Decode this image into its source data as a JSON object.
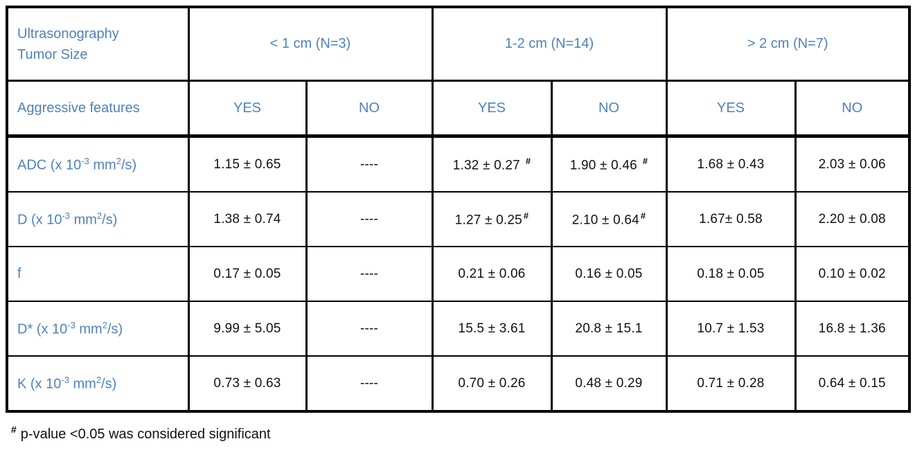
{
  "colors": {
    "accent": "#4F81BD",
    "text": "#111111",
    "border": "#000000",
    "background": "#FFFFFF"
  },
  "table": {
    "corner": {
      "line1": "Ultrasonography",
      "line2": "Tumor Size"
    },
    "size_groups": [
      "< 1 cm (N=3)",
      "1-2 cm (N=14)",
      "> 2 cm (N=7)"
    ],
    "aggressive_label": "Aggressive features",
    "yes_no_headers": [
      "YES",
      "NO",
      "YES",
      "NO",
      "YES",
      "NO"
    ],
    "rows": [
      {
        "parameter": "ADC (x 10-3 mm2/s)",
        "label_parts": [
          {
            "t": "ADC (x 10"
          },
          {
            "sup": "-3"
          },
          {
            "t": " mm"
          },
          {
            "sup": "2"
          },
          {
            "t": "/s)"
          }
        ],
        "values": [
          {
            "text": "1.15 ± 0.65"
          },
          {
            "text": "----"
          },
          {
            "text": "1.32 ± 0.27",
            "sig": true,
            "gap": true
          },
          {
            "text": "1.90 ± 0.46",
            "sig": true,
            "gap": true
          },
          {
            "text": "1.68 ± 0.43"
          },
          {
            "text": "2.03 ± 0.06"
          }
        ]
      },
      {
        "parameter": "D (x 10-3 mm2/s)",
        "label_parts": [
          {
            "t": "D (x 10"
          },
          {
            "sup": "-3"
          },
          {
            "t": " mm"
          },
          {
            "sup": "2"
          },
          {
            "t": "/s)"
          }
        ],
        "values": [
          {
            "text": "1.38 ± 0.74"
          },
          {
            "text": "----"
          },
          {
            "text": "1.27 ± 0.25",
            "sig": true
          },
          {
            "text": "2.10 ± 0.64",
            "sig": true
          },
          {
            "text": "1.67± 0.58"
          },
          {
            "text": "2.20 ± 0.08"
          }
        ]
      },
      {
        "parameter": "f",
        "label_parts": [
          {
            "t": "f"
          }
        ],
        "values": [
          {
            "text": "0.17 ± 0.05"
          },
          {
            "text": "----"
          },
          {
            "text": "0.21 ± 0.06"
          },
          {
            "text": "0.16 ± 0.05"
          },
          {
            "text": "0.18 ± 0.05"
          },
          {
            "text": "0.10 ± 0.02"
          }
        ]
      },
      {
        "parameter": "D* (x 10-3 mm2/s)",
        "label_parts": [
          {
            "t": "D* (x 10"
          },
          {
            "sup": "-3"
          },
          {
            "t": " mm"
          },
          {
            "sup": "2"
          },
          {
            "t": "/s)"
          }
        ],
        "values": [
          {
            "text": "9.99 ± 5.05"
          },
          {
            "text": "----"
          },
          {
            "text": "15.5 ± 3.61"
          },
          {
            "text": "20.8 ± 15.1"
          },
          {
            "text": "10.7 ± 1.53"
          },
          {
            "text": "16.8 ± 1.36"
          }
        ]
      },
      {
        "parameter": "K (x 10-3 mm2/s)",
        "label_parts": [
          {
            "t": "K (x 10"
          },
          {
            "sup": "-3"
          },
          {
            "t": " mm"
          },
          {
            "sup": "2"
          },
          {
            "t": "/s)"
          }
        ],
        "values": [
          {
            "text": "0.73 ± 0.63"
          },
          {
            "text": "----"
          },
          {
            "text": "0.70 ± 0.26"
          },
          {
            "text": "0.48 ± 0.29"
          },
          {
            "text": "0.71 ± 0.28"
          },
          {
            "text": "0.64 ± 0.15"
          }
        ]
      }
    ]
  },
  "footnote": {
    "marker": "#",
    "text": "p-value <0.05 was considered significant"
  }
}
